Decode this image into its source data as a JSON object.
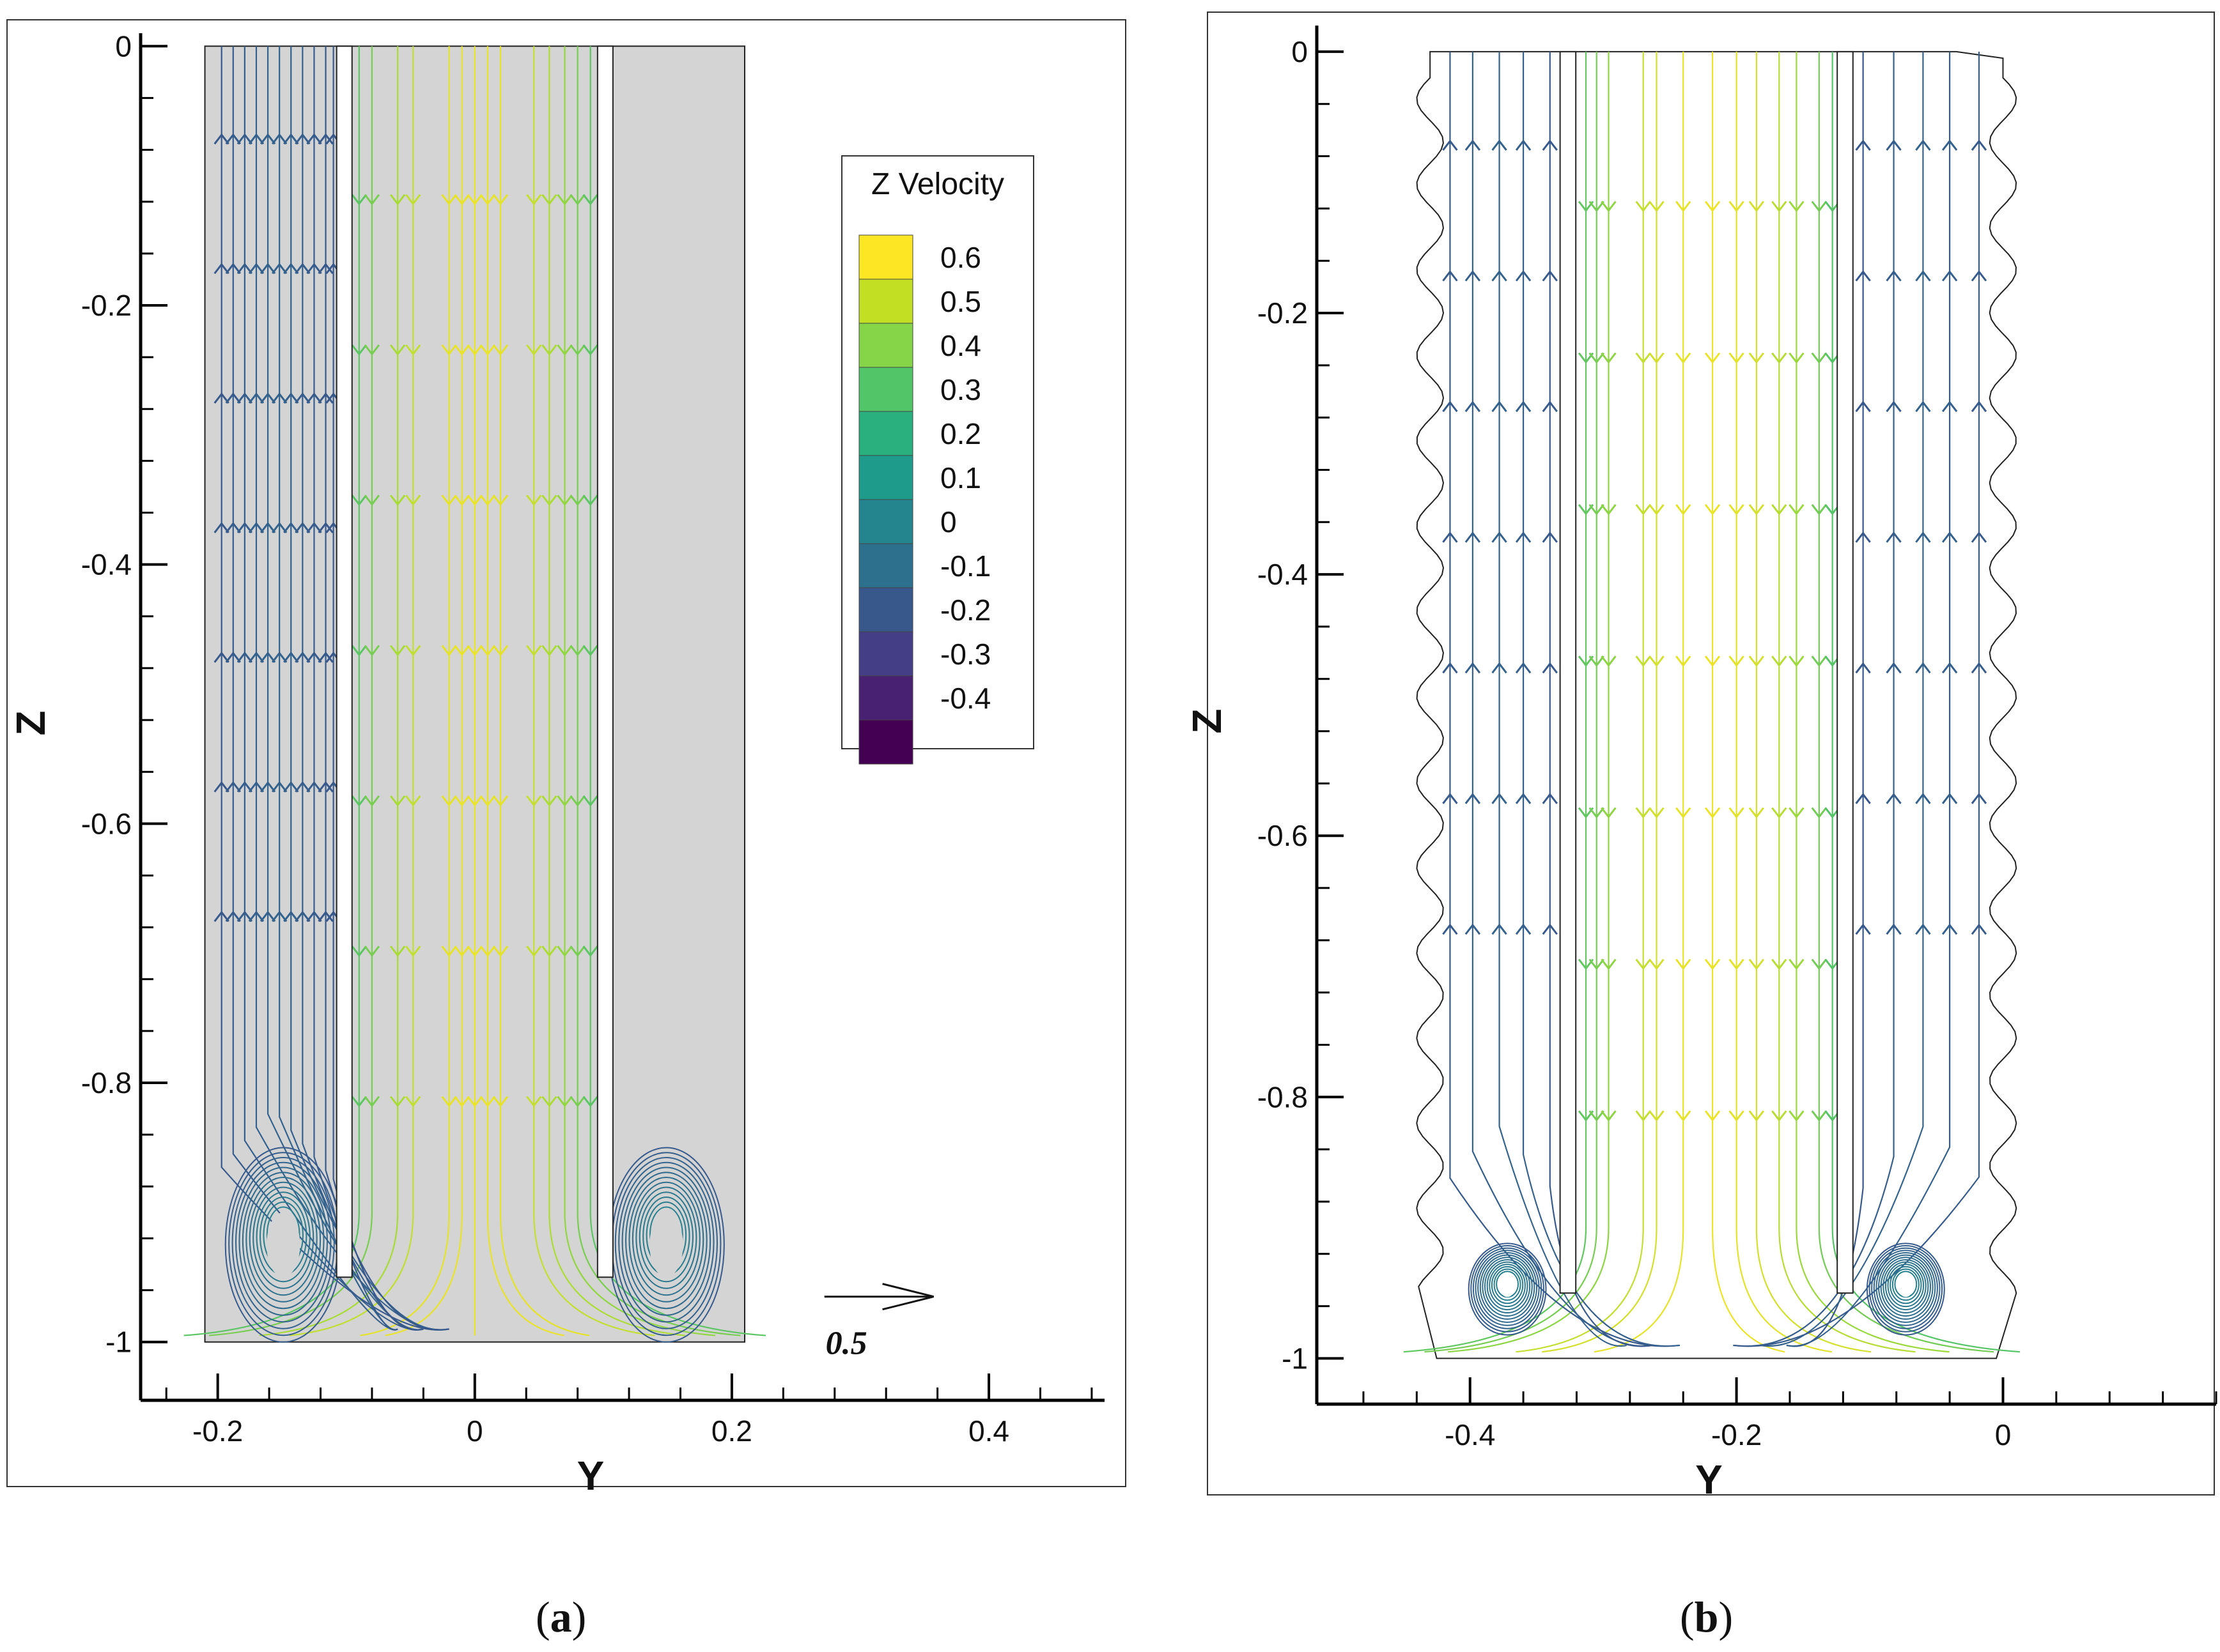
{
  "colors": {
    "background": "#ffffff",
    "domain_fill": "#d4d4d4",
    "axis": "#000000",
    "colormap": [
      "#440154",
      "#46327e",
      "#365c8d",
      "#277f8e",
      "#1fa187",
      "#4ac16d",
      "#a0da39",
      "#fde725"
    ]
  },
  "chart_data": [
    {
      "panel": "a",
      "type": "streamline",
      "caption": "a",
      "xlabel": "Y",
      "ylabel": "Z",
      "xlim": [
        -0.26,
        0.49
      ],
      "ylim": [
        -1.045,
        0.01
      ],
      "x_ticks": [
        "-0.2",
        "0",
        "0.2",
        "0.4"
      ],
      "x_tick_values": [
        -0.2,
        0,
        0.2,
        0.4
      ],
      "y_ticks": [
        "0",
        "-0.2",
        "-0.4",
        "-0.6",
        "-0.8",
        "-1"
      ],
      "y_tick_values": [
        0,
        -0.2,
        -0.4,
        -0.6,
        -0.8,
        -1
      ],
      "domain": {
        "y_min": -0.21,
        "y_max": 0.21,
        "z_min": -1.0,
        "z_max": 0.0
      },
      "inner_walls": [
        {
          "y1": -0.105,
          "y2": -0.098,
          "z_bottom": -0.95
        },
        {
          "y1": 0.098,
          "y2": 0.105,
          "z_bottom": -0.95
        }
      ],
      "vortices": [
        {
          "y": -0.149,
          "z": -0.925,
          "ry": 0.045,
          "rz": 0.075,
          "core_ry": 0.013,
          "core_rz": 0.025
        },
        {
          "y": 0.149,
          "z": -0.925,
          "ry": 0.045,
          "rz": 0.075,
          "core_ry": 0.013,
          "core_rz": 0.025
        }
      ],
      "outer_streamlines_y": [
        -0.197,
        -0.188,
        -0.179,
        -0.17,
        -0.161,
        -0.152,
        -0.143,
        -0.134,
        -0.125,
        -0.116,
        -0.11
      ],
      "inner_streamlines_y": [
        -0.09,
        -0.08,
        -0.06,
        -0.048,
        -0.02,
        -0.01,
        0.0,
        0.01,
        0.02,
        0.046,
        0.058,
        0.07,
        0.08,
        0.09
      ],
      "legend": {
        "title": "Z Velocity",
        "levels": [
          "0.6",
          "0.5",
          "0.4",
          "0.3",
          "0.2",
          "0.1",
          "0",
          "-0.1",
          "-0.2",
          "-0.3",
          "-0.4"
        ],
        "colors": [
          "#fde725",
          "#c2df23",
          "#86d549",
          "#52c569",
          "#2ab07f",
          "#1e9b8a",
          "#25858e",
          "#2d708e",
          "#38588c",
          "#433e85",
          "#482173",
          "#440154"
        ]
      },
      "reference_vector": {
        "label": "0.5",
        "value": 0.5
      }
    },
    {
      "panel": "b",
      "type": "streamline",
      "caption": "b",
      "xlabel": "Y",
      "ylabel": "Z",
      "xlim": [
        -0.515,
        0.16
      ],
      "ylim": [
        -1.035,
        0.02
      ],
      "x_ticks": [
        "-0.4",
        "-0.2",
        "0"
      ],
      "x_tick_values": [
        -0.4,
        -0.2,
        0
      ],
      "y_ticks": [
        "0",
        "-0.2",
        "-0.4",
        "-0.6",
        "-0.8",
        "-1"
      ],
      "y_tick_values": [
        0,
        -0.2,
        -0.4,
        -0.6,
        -0.8,
        -1
      ],
      "domain": {
        "y_min": -0.43,
        "y_max": 0.0,
        "z_min": -1.0,
        "z_max": 0.0,
        "wavy_amplitude": 0.01,
        "wavy_wavelength": 0.0653
      },
      "inner_walls": [
        {
          "y1": -0.33,
          "y2": -0.323,
          "z_bottom": -0.95
        },
        {
          "y1": -0.122,
          "y2": -0.115,
          "z_bottom": -0.95
        }
      ],
      "vortices": [
        {
          "y": -0.372,
          "z": -0.947,
          "ry": 0.029,
          "rz": 0.035,
          "core_ry": 0.005,
          "core_rz": 0.006
        },
        {
          "y": -0.073,
          "z": -0.947,
          "ry": 0.029,
          "rz": 0.035,
          "core_ry": 0.005,
          "core_rz": 0.006
        }
      ],
      "outer_streamlines_y": [
        -0.415,
        -0.398,
        -0.378,
        -0.36,
        -0.34,
        -0.105,
        -0.082,
        -0.06,
        -0.04,
        -0.018
      ],
      "inner_streamlines_y": [
        -0.313,
        -0.305,
        -0.296,
        -0.27,
        -0.26,
        -0.24,
        -0.218,
        -0.2,
        -0.185,
        -0.168,
        -0.155,
        -0.138,
        -0.128
      ],
      "legend": null,
      "reference_vector": null
    }
  ]
}
